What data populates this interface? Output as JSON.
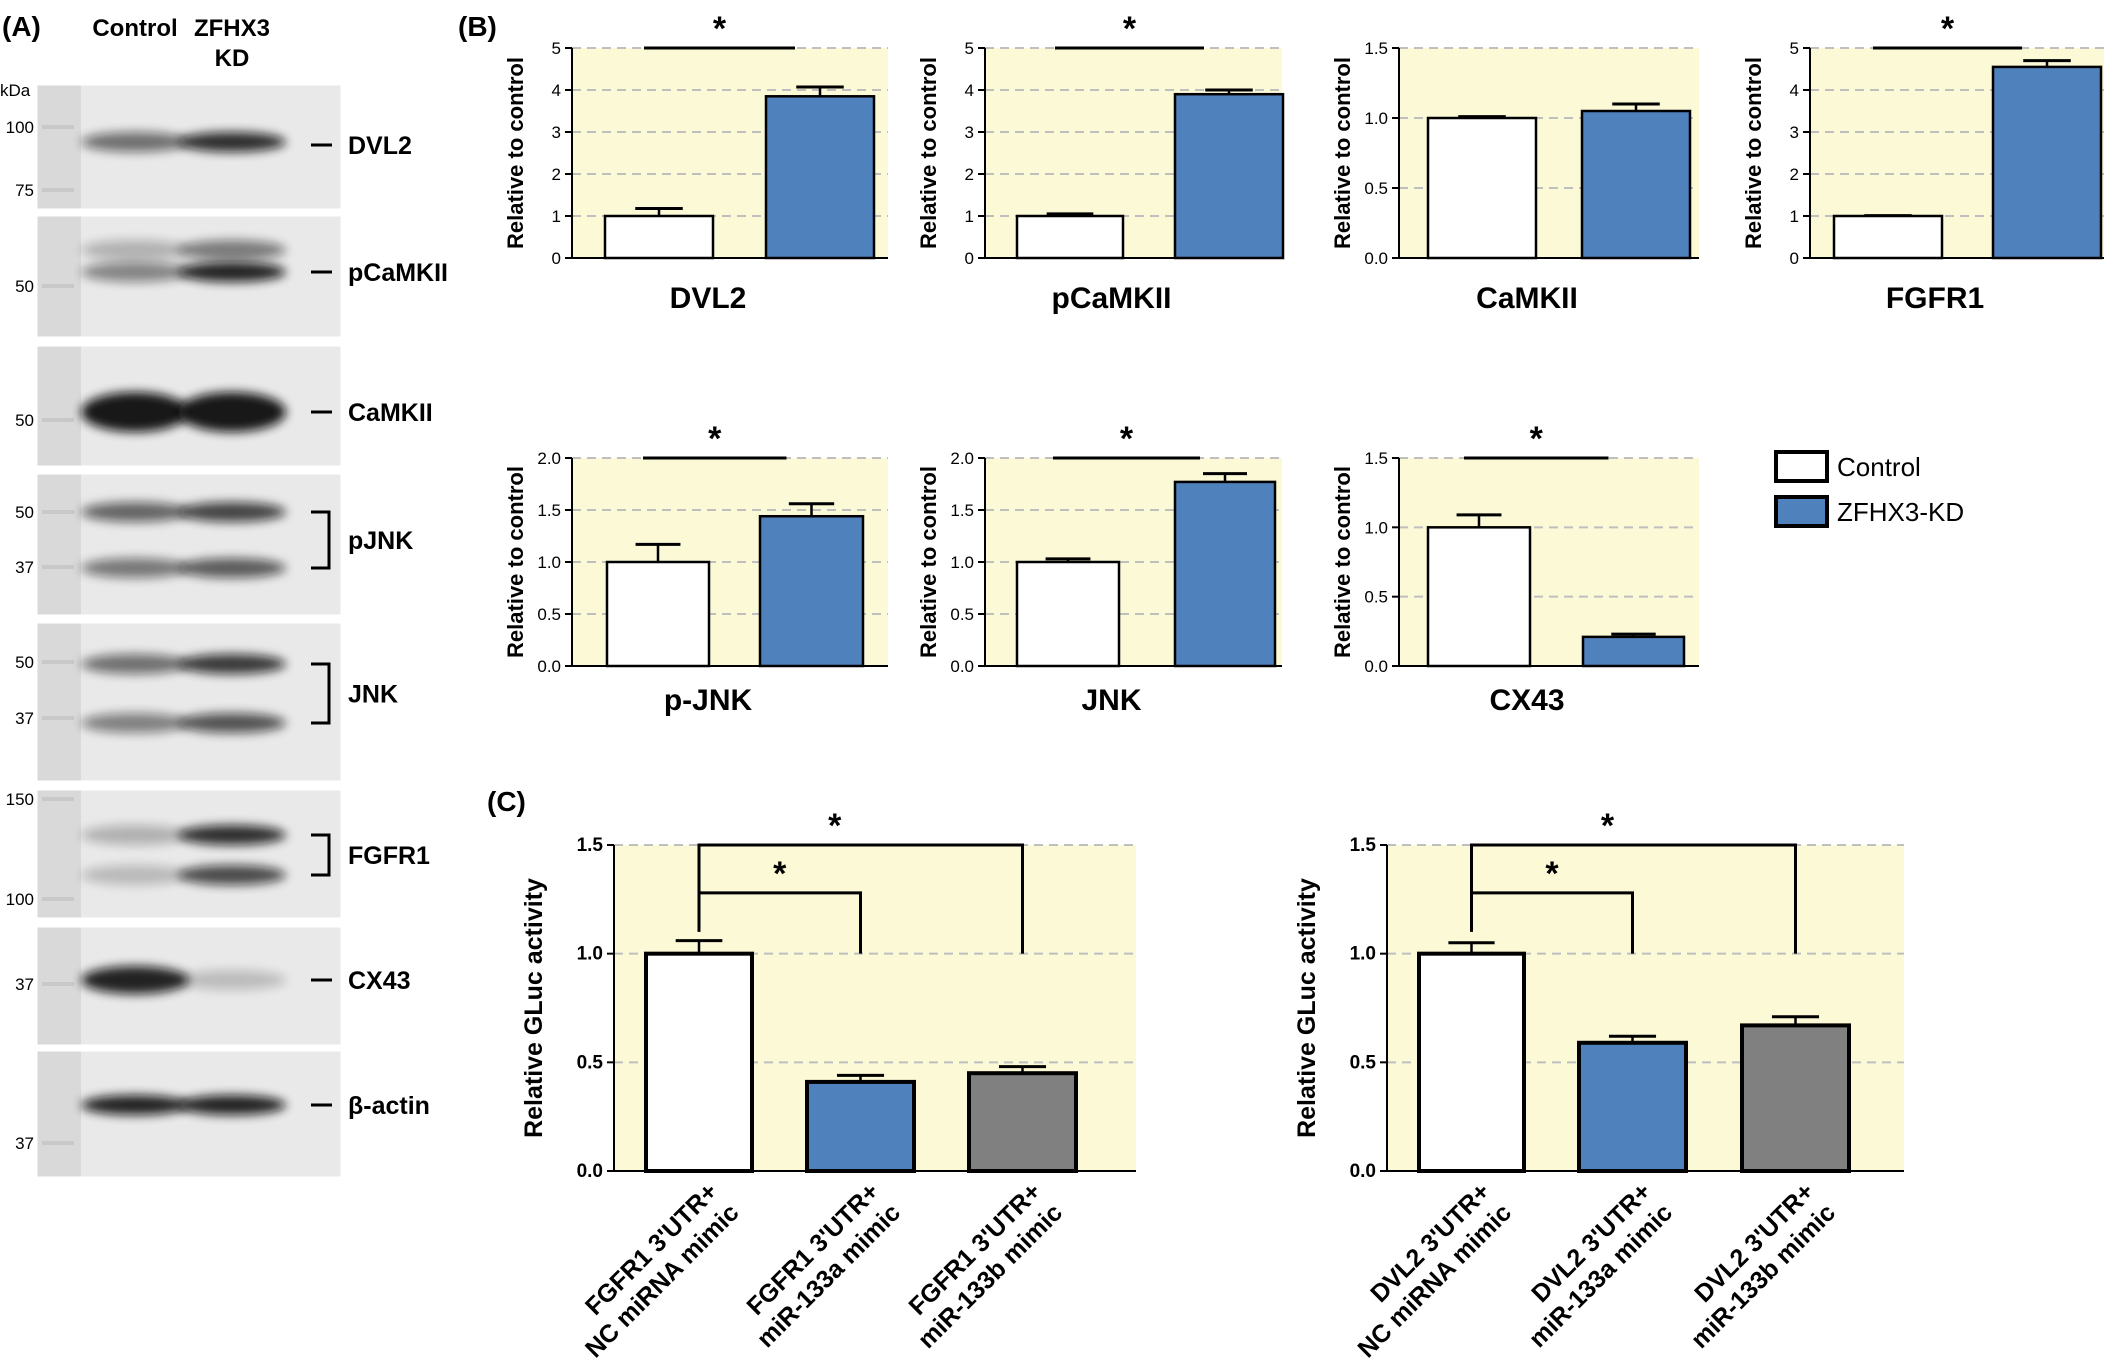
{
  "panels": {
    "a": "(A)",
    "b": "(B)",
    "c": "(C)"
  },
  "blot": {
    "lanes": [
      "Control",
      "ZFHX3\nKD"
    ],
    "kda_label": "kDa",
    "bands": [
      {
        "label": "DVL2",
        "markers": [
          "100",
          "75"
        ],
        "bracket": false,
        "intensity": [
          0.55,
          0.85
        ]
      },
      {
        "label": "pCaMKII",
        "markers": [
          "50"
        ],
        "bracket": false,
        "intensity": [
          0.45,
          0.9
        ]
      },
      {
        "label": "CaMKII",
        "markers": [
          "50"
        ],
        "bracket": false,
        "intensity": [
          0.95,
          0.95
        ]
      },
      {
        "label": "pJNK",
        "markers": [
          "50",
          "37"
        ],
        "bracket": true,
        "intensity": [
          0.6,
          0.75
        ]
      },
      {
        "label": "JNK",
        "markers": [
          "50",
          "37"
        ],
        "bracket": true,
        "intensity": [
          0.55,
          0.8
        ]
      },
      {
        "label": "FGFR1",
        "markers": [
          "150",
          "100"
        ],
        "bracket": true,
        "intensity": [
          0.25,
          0.85
        ]
      },
      {
        "label": "CX43",
        "markers": [
          "37"
        ],
        "bracket": false,
        "intensity": [
          0.9,
          0.2
        ]
      },
      {
        "label": "β-actin",
        "markers": [
          "37"
        ],
        "bracket": false,
        "intensity": [
          0.9,
          0.9
        ]
      }
    ]
  },
  "legend": [
    {
      "name": "Control",
      "color": "#ffffff"
    },
    {
      "name": "ZFHX3-KD",
      "color": "#4f81bd"
    }
  ],
  "colors": {
    "plot_bg": "#fbf9d6",
    "control": "#ffffff",
    "kd": "#4f81bd",
    "mir133b": "#808080",
    "grid": "#bfbfbf"
  },
  "chart_data": [
    {
      "type": "bar",
      "title": "DVL2",
      "ylabel": "Relative to control",
      "ylim": [
        0,
        5
      ],
      "yticks": [
        "0",
        "1",
        "2",
        "3",
        "4",
        "5"
      ],
      "categories": [
        "Control",
        "ZFHX3-KD"
      ],
      "values": [
        1.0,
        3.85
      ],
      "errors": [
        0.18,
        0.22
      ],
      "significance": [
        "*"
      ]
    },
    {
      "type": "bar",
      "title": "pCaMKII",
      "ylabel": "Relative to control",
      "ylim": [
        0,
        5
      ],
      "yticks": [
        "0",
        "1",
        "2",
        "3",
        "4",
        "5"
      ],
      "categories": [
        "Control",
        "ZFHX3-KD"
      ],
      "values": [
        1.0,
        3.9
      ],
      "errors": [
        0.05,
        0.1
      ],
      "significance": [
        "*"
      ]
    },
    {
      "type": "bar",
      "title": "CaMKII",
      "ylabel": "Relative to control",
      "ylim": [
        0,
        1.5
      ],
      "yticks": [
        "0.0",
        "0.5",
        "1.0",
        "1.5"
      ],
      "categories": [
        "Control",
        "ZFHX3-KD"
      ],
      "values": [
        1.0,
        1.05
      ],
      "errors": [
        0.01,
        0.05
      ],
      "significance": []
    },
    {
      "type": "bar",
      "title": "FGFR1",
      "ylabel": "Relative to control",
      "ylim": [
        0,
        5
      ],
      "yticks": [
        "0",
        "1",
        "2",
        "3",
        "4",
        "5"
      ],
      "categories": [
        "Control",
        "ZFHX3-KD"
      ],
      "values": [
        1.0,
        4.55
      ],
      "errors": [
        0.01,
        0.15
      ],
      "significance": [
        "*"
      ]
    },
    {
      "type": "bar",
      "title": "p-JNK",
      "ylabel": "Relative to control",
      "ylim": [
        0,
        2.0
      ],
      "yticks": [
        "0.0",
        "0.5",
        "1.0",
        "1.5",
        "2.0"
      ],
      "categories": [
        "Control",
        "ZFHX3-KD"
      ],
      "values": [
        1.0,
        1.44
      ],
      "errors": [
        0.17,
        0.12
      ],
      "significance": [
        "*"
      ]
    },
    {
      "type": "bar",
      "title": "JNK",
      "ylabel": "Relative to control",
      "ylim": [
        0,
        2.0
      ],
      "yticks": [
        "0.0",
        "0.5",
        "1.0",
        "1.5",
        "2.0"
      ],
      "categories": [
        "Control",
        "ZFHX3-KD"
      ],
      "values": [
        1.0,
        1.77
      ],
      "errors": [
        0.03,
        0.08
      ],
      "significance": [
        "*"
      ]
    },
    {
      "type": "bar",
      "title": "CX43",
      "ylabel": "Relative to control",
      "ylim": [
        0,
        1.5
      ],
      "yticks": [
        "0.0",
        "0.5",
        "1.0",
        "1.5"
      ],
      "categories": [
        "Control",
        "ZFHX3-KD"
      ],
      "values": [
        1.0,
        0.21
      ],
      "errors": [
        0.09,
        0.02
      ],
      "significance": [
        "*"
      ]
    },
    {
      "type": "bar",
      "title": "",
      "ylabel": "Relative GLuc activity",
      "ylim": [
        0,
        1.5
      ],
      "yticks": [
        "0.0",
        "0.5",
        "1.0",
        "1.5"
      ],
      "categories": [
        "FGFR1 3'UTR+\nNC miRNA mimic",
        "FGFR1 3'UTR+\nmiR-133a mimic",
        "FGFR1 3'UTR+\nmiR-133b mimic"
      ],
      "values": [
        1.0,
        0.41,
        0.45
      ],
      "errors": [
        0.06,
        0.03,
        0.03
      ],
      "significance": [
        "*",
        "*"
      ]
    },
    {
      "type": "bar",
      "title": "",
      "ylabel": "Relative GLuc activity",
      "ylim": [
        0,
        1.5
      ],
      "yticks": [
        "0.0",
        "0.5",
        "1.0",
        "1.5"
      ],
      "categories": [
        "DVL2 3'UTR+\nNC miRNA mimic",
        "DVL2 3'UTR+\nmiR-133a mimic",
        "DVL2 3'UTR+\nmiR-133b mimic"
      ],
      "values": [
        1.0,
        0.59,
        0.67
      ],
      "errors": [
        0.05,
        0.03,
        0.04
      ],
      "significance": [
        "*",
        "*"
      ]
    }
  ]
}
